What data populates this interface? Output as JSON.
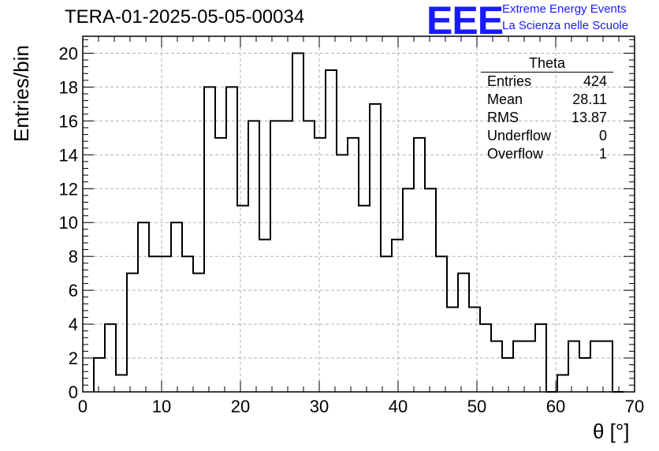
{
  "title": "TERA-01-2025-05-05-00034",
  "logo": {
    "mark": "EEE",
    "line1": "Extreme Energy Events",
    "line2": "La Scienza nelle Scuole",
    "color": "#1a1aff"
  },
  "stats_box": {
    "name": "Theta",
    "rows": [
      {
        "label": "Entries",
        "value": "424"
      },
      {
        "label": "Mean",
        "value": "28.11"
      },
      {
        "label": "RMS",
        "value": "13.87"
      },
      {
        "label": "Underflow",
        "value": "0"
      },
      {
        "label": "Overflow",
        "value": "1"
      }
    ]
  },
  "chart_data": {
    "type": "bar",
    "style": "step-histogram",
    "title": "TERA-01-2025-05-05-00034",
    "xlabel": "θ [°]",
    "ylabel": "Entries/bin",
    "xlim": [
      0,
      70
    ],
    "ylim": [
      0,
      21
    ],
    "bin_width": 1.4,
    "bin_edges_start": 1.4,
    "x_ticks": [
      0,
      10,
      20,
      30,
      40,
      50,
      60,
      70
    ],
    "y_ticks": [
      0,
      2,
      4,
      6,
      8,
      10,
      12,
      14,
      16,
      18,
      20
    ],
    "grid": true,
    "line_color": "#000000",
    "values": [
      2,
      4,
      1,
      7,
      10,
      8,
      8,
      10,
      8,
      7,
      18,
      15,
      18,
      11,
      16,
      9,
      16,
      16,
      20,
      16,
      15,
      19,
      14,
      15,
      11,
      17,
      8,
      9,
      12,
      15,
      12,
      8,
      5,
      7,
      5,
      4,
      3,
      2,
      3,
      3,
      4,
      0,
      1,
      3,
      2,
      3,
      3,
      0
    ]
  }
}
